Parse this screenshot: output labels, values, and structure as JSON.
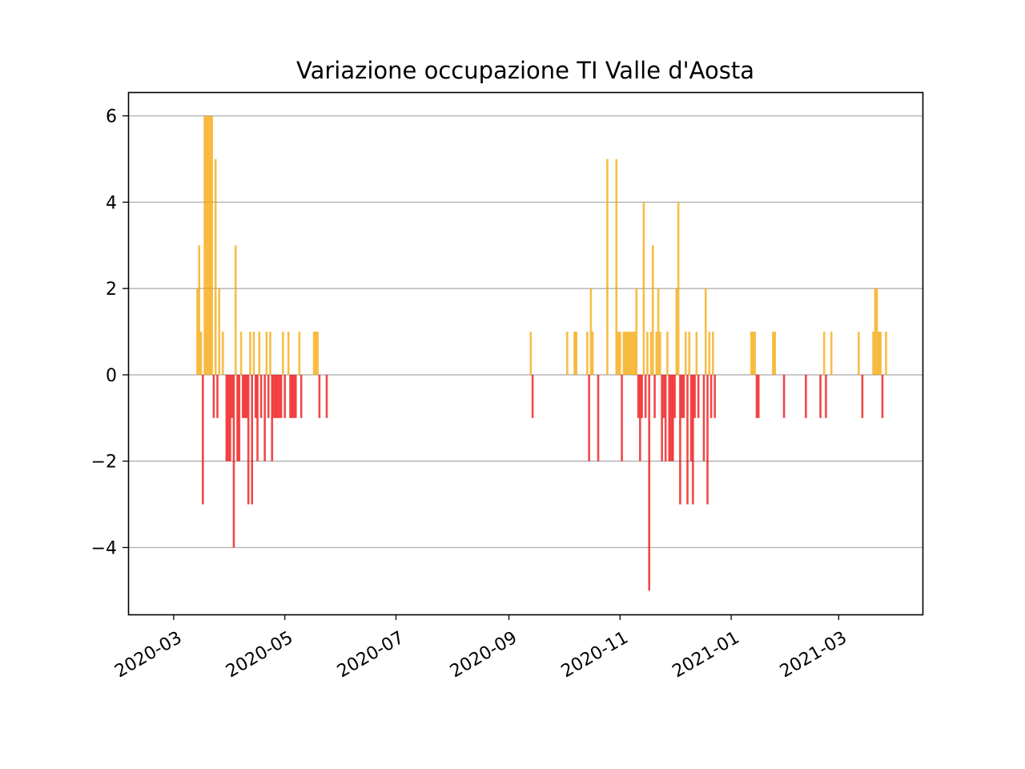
{
  "chart_data": {
    "type": "bar",
    "title": "Variazione occupazione TI Valle d'Aosta",
    "xlabel": "",
    "ylabel": "",
    "x_axis_type": "date",
    "xlim": [
      "2020-02-05",
      "2021-04-16"
    ],
    "ylim": [
      -5.55,
      6.55
    ],
    "x_ticks": [
      {
        "date": "2020-03-01",
        "label": "2020-03"
      },
      {
        "date": "2020-05-01",
        "label": "2020-05"
      },
      {
        "date": "2020-07-01",
        "label": "2020-07"
      },
      {
        "date": "2020-09-01",
        "label": "2020-09"
      },
      {
        "date": "2020-11-01",
        "label": "2020-11"
      },
      {
        "date": "2021-01-01",
        "label": "2021-01"
      },
      {
        "date": "2021-03-01",
        "label": "2021-03"
      }
    ],
    "y_ticks": [
      {
        "value": 6,
        "label": "6"
      },
      {
        "value": 4,
        "label": "4"
      },
      {
        "value": 2,
        "label": "2"
      },
      {
        "value": 0,
        "label": "0"
      },
      {
        "value": -2,
        "label": "−2"
      },
      {
        "value": -4,
        "label": "−4"
      }
    ],
    "grid": {
      "axis": "y",
      "on": true
    },
    "colors": {
      "positive": "#f5a400",
      "negative": "#ee0000",
      "grid": "#b0b0b0"
    },
    "series": [
      {
        "values": [
          {
            "x": "2020-03-14",
            "y": 2
          },
          {
            "x": "2020-03-15",
            "y": 3
          },
          {
            "x": "2020-03-16",
            "y": 1
          },
          {
            "x": "2020-03-17",
            "y": -3
          },
          {
            "x": "2020-03-18",
            "y": 6
          },
          {
            "x": "2020-03-19",
            "y": 6
          },
          {
            "x": "2020-03-20",
            "y": 6
          },
          {
            "x": "2020-03-21",
            "y": 6
          },
          {
            "x": "2020-03-22",
            "y": 6
          },
          {
            "x": "2020-03-23",
            "y": -1
          },
          {
            "x": "2020-03-24",
            "y": 5
          },
          {
            "x": "2020-03-25",
            "y": -1
          },
          {
            "x": "2020-03-26",
            "y": 2
          },
          {
            "x": "2020-03-28",
            "y": 1
          },
          {
            "x": "2020-03-30",
            "y": -2
          },
          {
            "x": "2020-03-31",
            "y": -2
          },
          {
            "x": "2020-04-01",
            "y": -2
          },
          {
            "x": "2020-04-02",
            "y": -1
          },
          {
            "x": "2020-04-03",
            "y": -4
          },
          {
            "x": "2020-04-04",
            "y": 3
          },
          {
            "x": "2020-04-05",
            "y": -2
          },
          {
            "x": "2020-04-06",
            "y": -2
          },
          {
            "x": "2020-04-07",
            "y": 1
          },
          {
            "x": "2020-04-08",
            "y": -1
          },
          {
            "x": "2020-04-09",
            "y": -1
          },
          {
            "x": "2020-04-10",
            "y": -1
          },
          {
            "x": "2020-04-11",
            "y": -3
          },
          {
            "x": "2020-04-12",
            "y": 1
          },
          {
            "x": "2020-04-13",
            "y": -3
          },
          {
            "x": "2020-04-14",
            "y": 1
          },
          {
            "x": "2020-04-15",
            "y": -1
          },
          {
            "x": "2020-04-16",
            "y": -2
          },
          {
            "x": "2020-04-17",
            "y": 1
          },
          {
            "x": "2020-04-18",
            "y": -1
          },
          {
            "x": "2020-04-20",
            "y": -2
          },
          {
            "x": "2020-04-21",
            "y": 1
          },
          {
            "x": "2020-04-22",
            "y": -1
          },
          {
            "x": "2020-04-23",
            "y": 1
          },
          {
            "x": "2020-04-24",
            "y": -2
          },
          {
            "x": "2020-04-25",
            "y": -1
          },
          {
            "x": "2020-04-26",
            "y": -1
          },
          {
            "x": "2020-04-27",
            "y": -1
          },
          {
            "x": "2020-04-28",
            "y": -1
          },
          {
            "x": "2020-04-29",
            "y": -1
          },
          {
            "x": "2020-04-30",
            "y": 1
          },
          {
            "x": "2020-05-01",
            "y": -1
          },
          {
            "x": "2020-05-03",
            "y": 1
          },
          {
            "x": "2020-05-04",
            "y": -1
          },
          {
            "x": "2020-05-05",
            "y": -1
          },
          {
            "x": "2020-05-06",
            "y": -1
          },
          {
            "x": "2020-05-07",
            "y": -1
          },
          {
            "x": "2020-05-09",
            "y": 1
          },
          {
            "x": "2020-05-10",
            "y": -1
          },
          {
            "x": "2020-05-17",
            "y": 1
          },
          {
            "x": "2020-05-18",
            "y": 1
          },
          {
            "x": "2020-05-19",
            "y": 1
          },
          {
            "x": "2020-05-20",
            "y": -1
          },
          {
            "x": "2020-05-24",
            "y": -1
          },
          {
            "x": "2020-09-13",
            "y": 1
          },
          {
            "x": "2020-09-14",
            "y": -1
          },
          {
            "x": "2020-10-03",
            "y": 1
          },
          {
            "x": "2020-10-07",
            "y": 1
          },
          {
            "x": "2020-10-08",
            "y": 1
          },
          {
            "x": "2020-10-14",
            "y": 1
          },
          {
            "x": "2020-10-15",
            "y": -2
          },
          {
            "x": "2020-10-16",
            "y": 2
          },
          {
            "x": "2020-10-17",
            "y": 1
          },
          {
            "x": "2020-10-20",
            "y": -2
          },
          {
            "x": "2020-10-25",
            "y": 5
          },
          {
            "x": "2020-10-30",
            "y": 5
          },
          {
            "x": "2020-10-31",
            "y": 1
          },
          {
            "x": "2020-11-01",
            "y": 1
          },
          {
            "x": "2020-11-02",
            "y": -2
          },
          {
            "x": "2020-11-03",
            "y": 1
          },
          {
            "x": "2020-11-04",
            "y": 1
          },
          {
            "x": "2020-11-05",
            "y": 1
          },
          {
            "x": "2020-11-06",
            "y": 1
          },
          {
            "x": "2020-11-07",
            "y": 1
          },
          {
            "x": "2020-11-08",
            "y": 1
          },
          {
            "x": "2020-11-09",
            "y": 1
          },
          {
            "x": "2020-11-10",
            "y": 2
          },
          {
            "x": "2020-11-11",
            "y": -1
          },
          {
            "x": "2020-11-12",
            "y": -2
          },
          {
            "x": "2020-11-13",
            "y": -1
          },
          {
            "x": "2020-11-14",
            "y": 4
          },
          {
            "x": "2020-11-15",
            "y": -1
          },
          {
            "x": "2020-11-16",
            "y": 1
          },
          {
            "x": "2020-11-17",
            "y": -5
          },
          {
            "x": "2020-11-18",
            "y": 1
          },
          {
            "x": "2020-11-19",
            "y": 3
          },
          {
            "x": "2020-11-20",
            "y": -1
          },
          {
            "x": "2020-11-21",
            "y": 1
          },
          {
            "x": "2020-11-22",
            "y": 2
          },
          {
            "x": "2020-11-23",
            "y": 1
          },
          {
            "x": "2020-11-24",
            "y": -2
          },
          {
            "x": "2020-11-25",
            "y": -1
          },
          {
            "x": "2020-11-26",
            "y": -2
          },
          {
            "x": "2020-11-27",
            "y": 1
          },
          {
            "x": "2020-11-28",
            "y": -2
          },
          {
            "x": "2020-11-29",
            "y": -2
          },
          {
            "x": "2020-11-30",
            "y": -2
          },
          {
            "x": "2020-12-01",
            "y": -1
          },
          {
            "x": "2020-12-02",
            "y": 2
          },
          {
            "x": "2020-12-03",
            "y": 4
          },
          {
            "x": "2020-12-04",
            "y": -3
          },
          {
            "x": "2020-12-05",
            "y": -1
          },
          {
            "x": "2020-12-06",
            "y": -1
          },
          {
            "x": "2020-12-07",
            "y": 1
          },
          {
            "x": "2020-12-08",
            "y": -3
          },
          {
            "x": "2020-12-09",
            "y": 1
          },
          {
            "x": "2020-12-10",
            "y": -2
          },
          {
            "x": "2020-12-11",
            "y": -3
          },
          {
            "x": "2020-12-12",
            "y": -1
          },
          {
            "x": "2020-12-13",
            "y": 1
          },
          {
            "x": "2020-12-14",
            "y": -1
          },
          {
            "x": "2020-12-17",
            "y": -2
          },
          {
            "x": "2020-12-18",
            "y": 2
          },
          {
            "x": "2020-12-19",
            "y": -3
          },
          {
            "x": "2020-12-20",
            "y": 1
          },
          {
            "x": "2020-12-21",
            "y": -1
          },
          {
            "x": "2020-12-22",
            "y": 1
          },
          {
            "x": "2020-12-23",
            "y": -1
          },
          {
            "x": "2021-01-12",
            "y": 1
          },
          {
            "x": "2021-01-13",
            "y": 1
          },
          {
            "x": "2021-01-14",
            "y": 1
          },
          {
            "x": "2021-01-15",
            "y": -1
          },
          {
            "x": "2021-01-16",
            "y": -1
          },
          {
            "x": "2021-01-24",
            "y": 1
          },
          {
            "x": "2021-01-25",
            "y": 1
          },
          {
            "x": "2021-01-30",
            "y": -1
          },
          {
            "x": "2021-02-11",
            "y": -1
          },
          {
            "x": "2021-02-19",
            "y": -1
          },
          {
            "x": "2021-02-21",
            "y": 1
          },
          {
            "x": "2021-02-22",
            "y": -1
          },
          {
            "x": "2021-02-25",
            "y": 1
          },
          {
            "x": "2021-03-12",
            "y": 1
          },
          {
            "x": "2021-03-14",
            "y": -1
          },
          {
            "x": "2021-03-20",
            "y": 1
          },
          {
            "x": "2021-03-21",
            "y": 2
          },
          {
            "x": "2021-03-22",
            "y": 2
          },
          {
            "x": "2021-03-23",
            "y": 1
          },
          {
            "x": "2021-03-24",
            "y": 1
          },
          {
            "x": "2021-03-25",
            "y": -1
          },
          {
            "x": "2021-03-27",
            "y": 1
          }
        ]
      }
    ]
  }
}
